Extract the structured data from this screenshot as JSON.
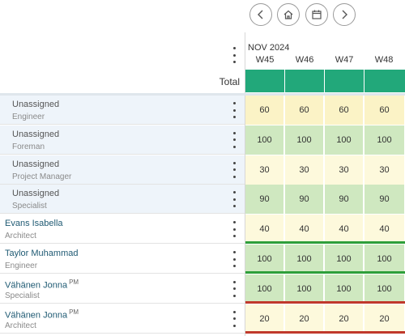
{
  "nav": {
    "prev_icon": "chevron-left-icon",
    "home_icon": "home-icon",
    "calendar_icon": "calendar-icon",
    "next_icon": "chevron-right-icon"
  },
  "header": {
    "total_label": "Total",
    "month_label": "NOV 2024",
    "weeks": [
      "W45",
      "W46",
      "W47",
      "W48"
    ],
    "total_color": "#22a87a"
  },
  "rows": [
    {
      "name": "Unassigned",
      "role": "Engineer",
      "pm": "",
      "type": "unassigned",
      "values": [
        "60",
        "60",
        "60",
        "60"
      ],
      "fill": "y",
      "stripe": ""
    },
    {
      "name": "Unassigned",
      "role": "Foreman",
      "pm": "",
      "type": "unassigned",
      "values": [
        "100",
        "100",
        "100",
        "100"
      ],
      "fill": "g",
      "stripe": ""
    },
    {
      "name": "Unassigned",
      "role": "Project Manager",
      "pm": "",
      "type": "unassigned",
      "values": [
        "30",
        "30",
        "30",
        "30"
      ],
      "fill": "ly",
      "stripe": ""
    },
    {
      "name": "Unassigned",
      "role": "Specialist",
      "pm": "",
      "type": "unassigned",
      "values": [
        "90",
        "90",
        "90",
        "90"
      ],
      "fill": "g",
      "stripe": ""
    },
    {
      "name": "Evans Isabella",
      "role": "Architect",
      "pm": "",
      "type": "person",
      "values": [
        "40",
        "40",
        "40",
        "40"
      ],
      "fill": "ly",
      "stripe": "#2e9f3a"
    },
    {
      "name": "Taylor Muhammad",
      "role": "Engineer",
      "pm": "",
      "type": "person",
      "values": [
        "100",
        "100",
        "100",
        "100"
      ],
      "fill": "g",
      "stripe": "#2e9f3a"
    },
    {
      "name": "Vähänen Jonna",
      "role": "Specialist",
      "pm": "PM",
      "type": "person",
      "values": [
        "100",
        "100",
        "100",
        "100"
      ],
      "fill": "g",
      "stripe": "#c0392b"
    },
    {
      "name": "Vähänen Jonna",
      "role": "Architect",
      "pm": "PM",
      "type": "person",
      "values": [
        "20",
        "20",
        "20",
        "20"
      ],
      "fill": "ly",
      "stripe": "#c0392b"
    }
  ]
}
